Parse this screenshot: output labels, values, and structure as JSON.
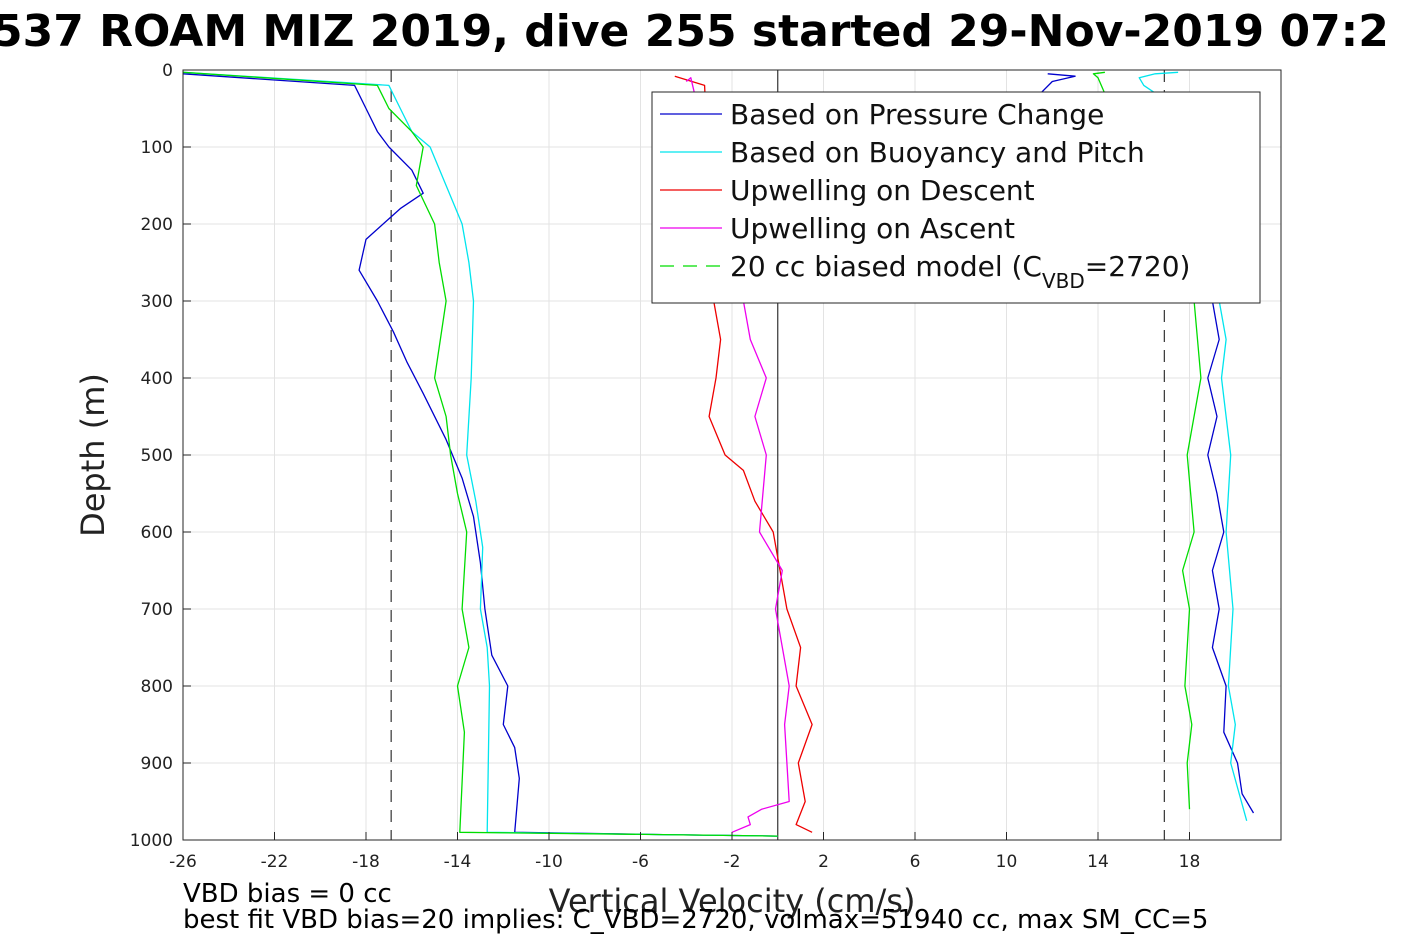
{
  "chart_data": {
    "type": "line",
    "title": "537 ROAM MIZ 2019, dive 255 started 29-Nov-2019 07:2",
    "xlabel": "Vertical Velocity (cm/s)",
    "ylabel": "Depth (m)",
    "xlim": [
      -26,
      22
    ],
    "ylim": [
      0,
      1000
    ],
    "y_reversed": true,
    "grid": true,
    "legend_position": "top-right",
    "x_ticks": [
      -26,
      -22,
      -18,
      -14,
      -10,
      -6,
      -2,
      2,
      6,
      10,
      14,
      18
    ],
    "y_ticks": [
      0,
      100,
      200,
      300,
      400,
      500,
      600,
      700,
      800,
      900,
      1000
    ],
    "reference_lines": [
      {
        "kind": "dashed",
        "x": -16.9,
        "color": "#333333"
      },
      {
        "kind": "solid",
        "x": 0,
        "color": "#333333"
      },
      {
        "kind": "dashed",
        "x": 16.9,
        "color": "#333333"
      }
    ],
    "legend": [
      {
        "label": "Based on Pressure Change",
        "color": "#0000cc",
        "style": "solid"
      },
      {
        "label": "Based on Buoyancy and Pitch",
        "color": "#00e5ee",
        "style": "solid"
      },
      {
        "label": "Upwelling on Descent",
        "color": "#ee0000",
        "style": "solid"
      },
      {
        "label": "Upwelling on Ascent",
        "color": "#ee00ee",
        "style": "solid"
      },
      {
        "label": "20 cc biased model (C",
        "sub": "VBD",
        "suffix": "=2720)",
        "color": "#00dd00",
        "style": "dashed"
      }
    ],
    "series": [
      {
        "name": "Based on Pressure Change, descent",
        "color": "#0000cc",
        "x": [
          -26,
          -18.5,
          -18,
          -17.5,
          -17,
          -16,
          -15.5,
          -16.5,
          -18,
          -18.3,
          -17.5,
          -16.8,
          -16.2,
          -15.5,
          -14.5,
          -13.8,
          -13.3,
          -13.0,
          -12.8,
          -12.5,
          -11.8,
          -12,
          -11.5,
          -11.3,
          -11.5,
          -5,
          0
        ],
        "y": [
          5,
          20,
          50,
          80,
          100,
          130,
          160,
          180,
          220,
          260,
          300,
          340,
          380,
          420,
          480,
          530,
          580,
          640,
          700,
          760,
          800,
          850,
          880,
          920,
          990,
          993,
          995
        ]
      },
      {
        "name": "Based on Pressure Change, ascent",
        "color": "#0000cc",
        "x": [
          20.8,
          20.3,
          20.1,
          19.5,
          19.6,
          19.0,
          19.3,
          19.0,
          19.5,
          19.2,
          18.8,
          19.2,
          18.8,
          19.3,
          19.0,
          12,
          11.5,
          12,
          13,
          11.8
        ],
        "y": [
          965,
          940,
          900,
          860,
          800,
          750,
          700,
          650,
          600,
          550,
          500,
          450,
          400,
          350,
          300,
          50,
          30,
          15,
          8,
          5
        ]
      },
      {
        "name": "Based on Buoyancy and Pitch, descent",
        "color": "#00e5ee",
        "x": [
          -26,
          -17,
          -16.5,
          -16,
          -15.2,
          -14.5,
          -13.8,
          -13.5,
          -13.3,
          -13.4,
          -13.6,
          -13.2,
          -12.9,
          -13.0,
          -12.7,
          -12.6,
          -12.7,
          -5,
          0
        ],
        "y": [
          3,
          20,
          50,
          80,
          100,
          150,
          200,
          250,
          300,
          400,
          500,
          560,
          620,
          700,
          750,
          800,
          990,
          993,
          995
        ]
      },
      {
        "name": "Based on Buoyancy and Pitch, ascent",
        "color": "#00e5ee",
        "x": [
          20.5,
          19.8,
          20.0,
          19.7,
          19.9,
          19.6,
          19.8,
          19.4,
          19.6,
          19.3,
          17.5,
          16.0,
          15.8,
          16.5,
          17.5
        ],
        "y": [
          975,
          900,
          850,
          800,
          700,
          600,
          500,
          400,
          350,
          300,
          50,
          20,
          10,
          5,
          3
        ]
      },
      {
        "name": "Upwelling on Descent",
        "color": "#ee0000",
        "x": [
          -4.5,
          -3.2,
          -2.8,
          -2.5,
          -2.7,
          -3.0,
          -2.3,
          -1.5,
          -1.0,
          -0.2,
          0.4,
          1.0,
          0.8,
          1.5,
          0.9,
          1.2,
          0.8,
          1.5
        ],
        "y": [
          8,
          20,
          300,
          350,
          400,
          450,
          500,
          520,
          560,
          600,
          700,
          750,
          800,
          850,
          900,
          950,
          980,
          990
        ]
      },
      {
        "name": "Upwelling on Ascent",
        "color": "#ee00ee",
        "x": [
          -4.0,
          -3.8,
          -1.5,
          -1.2,
          -0.5,
          -1.0,
          -0.5,
          -0.8,
          0.2,
          -0.1,
          0.5,
          0.3,
          0.5,
          -0.7,
          -1.3,
          -1.2,
          -2.0
        ],
        "y": [
          15,
          10,
          300,
          350,
          400,
          450,
          500,
          600,
          650,
          700,
          800,
          850,
          950,
          960,
          970,
          980,
          990
        ]
      },
      {
        "name": "20 cc biased model, descent",
        "color": "#00dd00",
        "x": [
          -26,
          -17.5,
          -17,
          -16,
          -15.5,
          -15.8,
          -15.0,
          -14.8,
          -14.5,
          -15.0,
          -14.5,
          -14.3,
          -14.0,
          -13.6,
          -13.8,
          -13.5,
          -14.0,
          -13.7,
          -13.9,
          -5,
          0
        ],
        "y": [
          3,
          20,
          50,
          80,
          100,
          150,
          200,
          250,
          300,
          400,
          450,
          500,
          550,
          600,
          700,
          750,
          800,
          860,
          990,
          993,
          995
        ]
      },
      {
        "name": "20 cc biased model, ascent",
        "color": "#00dd00",
        "x": [
          18.0,
          17.9,
          18.1,
          17.8,
          18.0,
          17.7,
          18.2,
          17.9,
          18.5,
          18.2,
          14.0,
          13.8,
          14.3
        ],
        "y": [
          960,
          900,
          850,
          800,
          700,
          650,
          600,
          500,
          400,
          300,
          10,
          5,
          3
        ]
      }
    ]
  },
  "footer": {
    "line1": "VBD bias = 0 cc",
    "line2": "best fit VBD bias=20 implies: C_VBD=2720, volmax=51940 cc, max SM_CC=5"
  }
}
